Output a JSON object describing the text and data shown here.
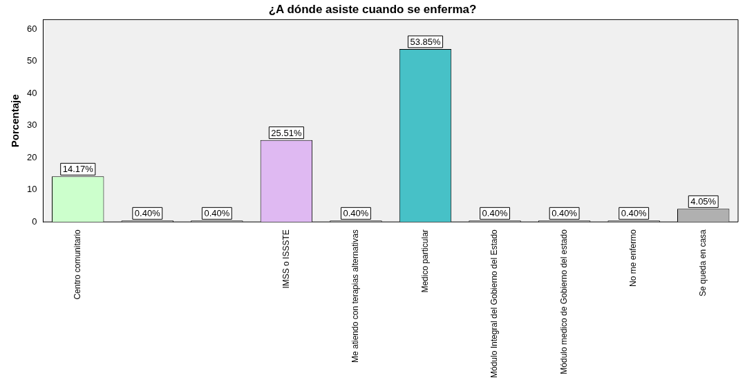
{
  "chart_data": {
    "type": "bar",
    "title": "¿A dónde asiste cuando se enferma?",
    "ylabel": "Porcentaje",
    "categories": [
      "Centro comunitario",
      null,
      null,
      "IMSS o ISSSTE",
      "Me atiendo con terapias alternativas",
      "Medico particular",
      "Módulo Integral del Gobierno del Estado",
      "Módulo medico de Gobierno del estado",
      "No me enfermo",
      "Se queda en casa"
    ],
    "values": [
      14.17,
      0.4,
      0.4,
      25.51,
      0.4,
      53.85,
      0.4,
      0.4,
      0.4,
      4.05
    ],
    "value_labels": [
      "14.17%",
      "0.40%",
      "0.40%",
      "25.51%",
      "0.40%",
      "53.85%",
      "0.40%",
      "0.40%",
      "0.40%",
      "4.05%"
    ],
    "colors": [
      "#ccffcc",
      "#b0b0b0",
      "#b0b0b0",
      "#dfb9f2",
      "#b0b0b0",
      "#47c1c7",
      "#b0b0b0",
      "#b0b0b0",
      "#b0b0b0",
      "#b0b0b0"
    ],
    "ylim": [
      0,
      63
    ],
    "yticks": [
      0,
      10,
      20,
      30,
      40,
      50,
      60
    ],
    "grid": false,
    "legend": false
  }
}
